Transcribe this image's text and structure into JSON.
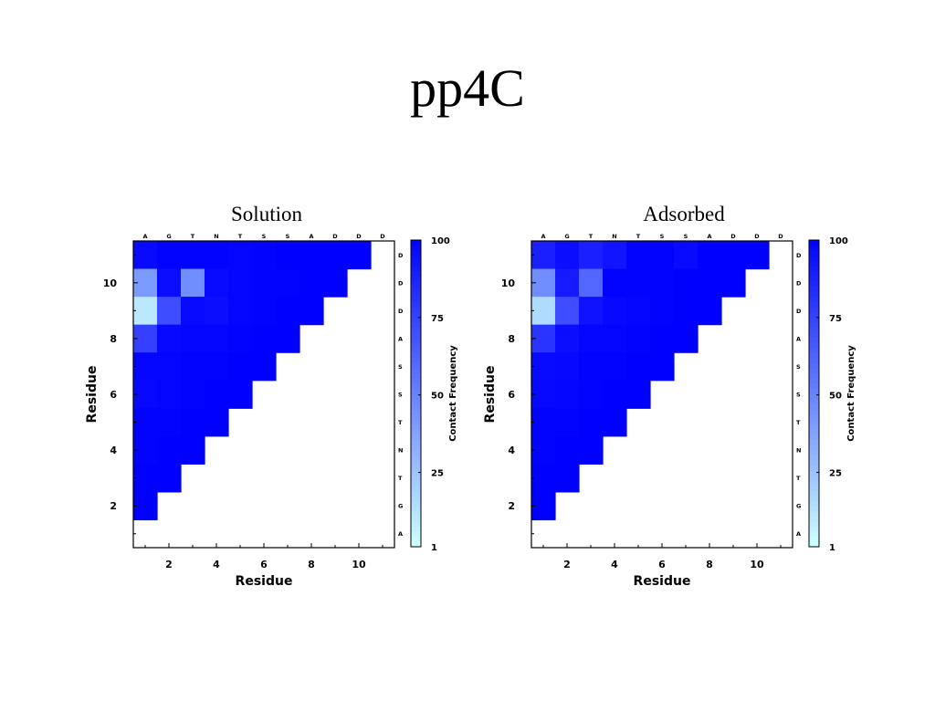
{
  "slide": {
    "title": "pp4C"
  },
  "chart_data": [
    {
      "type": "heatmap",
      "title": "Solution",
      "xlabel": "Residue",
      "ylabel": "Residue",
      "x_ticks": [
        2,
        4,
        6,
        8,
        10
      ],
      "y_ticks": [
        2,
        4,
        6,
        8,
        10
      ],
      "sequence": [
        "A",
        "G",
        "T",
        "N",
        "T",
        "S",
        "S",
        "A",
        "D",
        "D",
        "D"
      ],
      "colorbar": {
        "label": "Contact Frequency",
        "min": 1,
        "max": 100,
        "ticks": [
          1,
          25,
          50,
          75,
          100
        ],
        "low_color": "#ccffff",
        "high_color": "#0000ff"
      },
      "rows": [
        11,
        10,
        9,
        8,
        7,
        6,
        5,
        4,
        3,
        2
      ],
      "values": [
        [
          96,
          99,
          99,
          99,
          98,
          99,
          100,
          100,
          100,
          100
        ],
        [
          40,
          95,
          45,
          96,
          98,
          99,
          99,
          100,
          100
        ],
        [
          10,
          70,
          96,
          95,
          98,
          99,
          100,
          100
        ],
        [
          75,
          97,
          98,
          98,
          99,
          100,
          100
        ],
        [
          98,
          98,
          99,
          99,
          100,
          100
        ],
        [
          97,
          98,
          99,
          100,
          100
        ],
        [
          99,
          99,
          100,
          100
        ],
        [
          99,
          100,
          100
        ],
        [
          100,
          100
        ],
        [
          100
        ]
      ]
    },
    {
      "type": "heatmap",
      "title": "Adsorbed",
      "xlabel": "Residue",
      "ylabel": "Residue",
      "x_ticks": [
        2,
        4,
        6,
        8,
        10
      ],
      "y_ticks": [
        2,
        4,
        6,
        8,
        10
      ],
      "sequence": [
        "A",
        "G",
        "T",
        "N",
        "T",
        "S",
        "S",
        "A",
        "D",
        "D",
        "D"
      ],
      "colorbar": {
        "label": "Contact Frequency",
        "min": 1,
        "max": 100,
        "ticks": [
          1,
          25,
          50,
          75,
          100
        ],
        "low_color": "#ccffff",
        "high_color": "#0000ff"
      },
      "rows": [
        11,
        10,
        9,
        8,
        7,
        6,
        5,
        4,
        3,
        2
      ],
      "values": [
        [
          88,
          95,
          88,
          92,
          99,
          99,
          96,
          100,
          100,
          100
        ],
        [
          45,
          90,
          60,
          99,
          99,
          99,
          100,
          100,
          100
        ],
        [
          15,
          70,
          93,
          97,
          98,
          99,
          100,
          100
        ],
        [
          80,
          95,
          98,
          98,
          99,
          100,
          100
        ],
        [
          96,
          97,
          99,
          99,
          100,
          100
        ],
        [
          97,
          98,
          99,
          100,
          100
        ],
        [
          99,
          99,
          100,
          100
        ],
        [
          99,
          100,
          100
        ],
        [
          100,
          100
        ],
        [
          100
        ]
      ]
    }
  ]
}
